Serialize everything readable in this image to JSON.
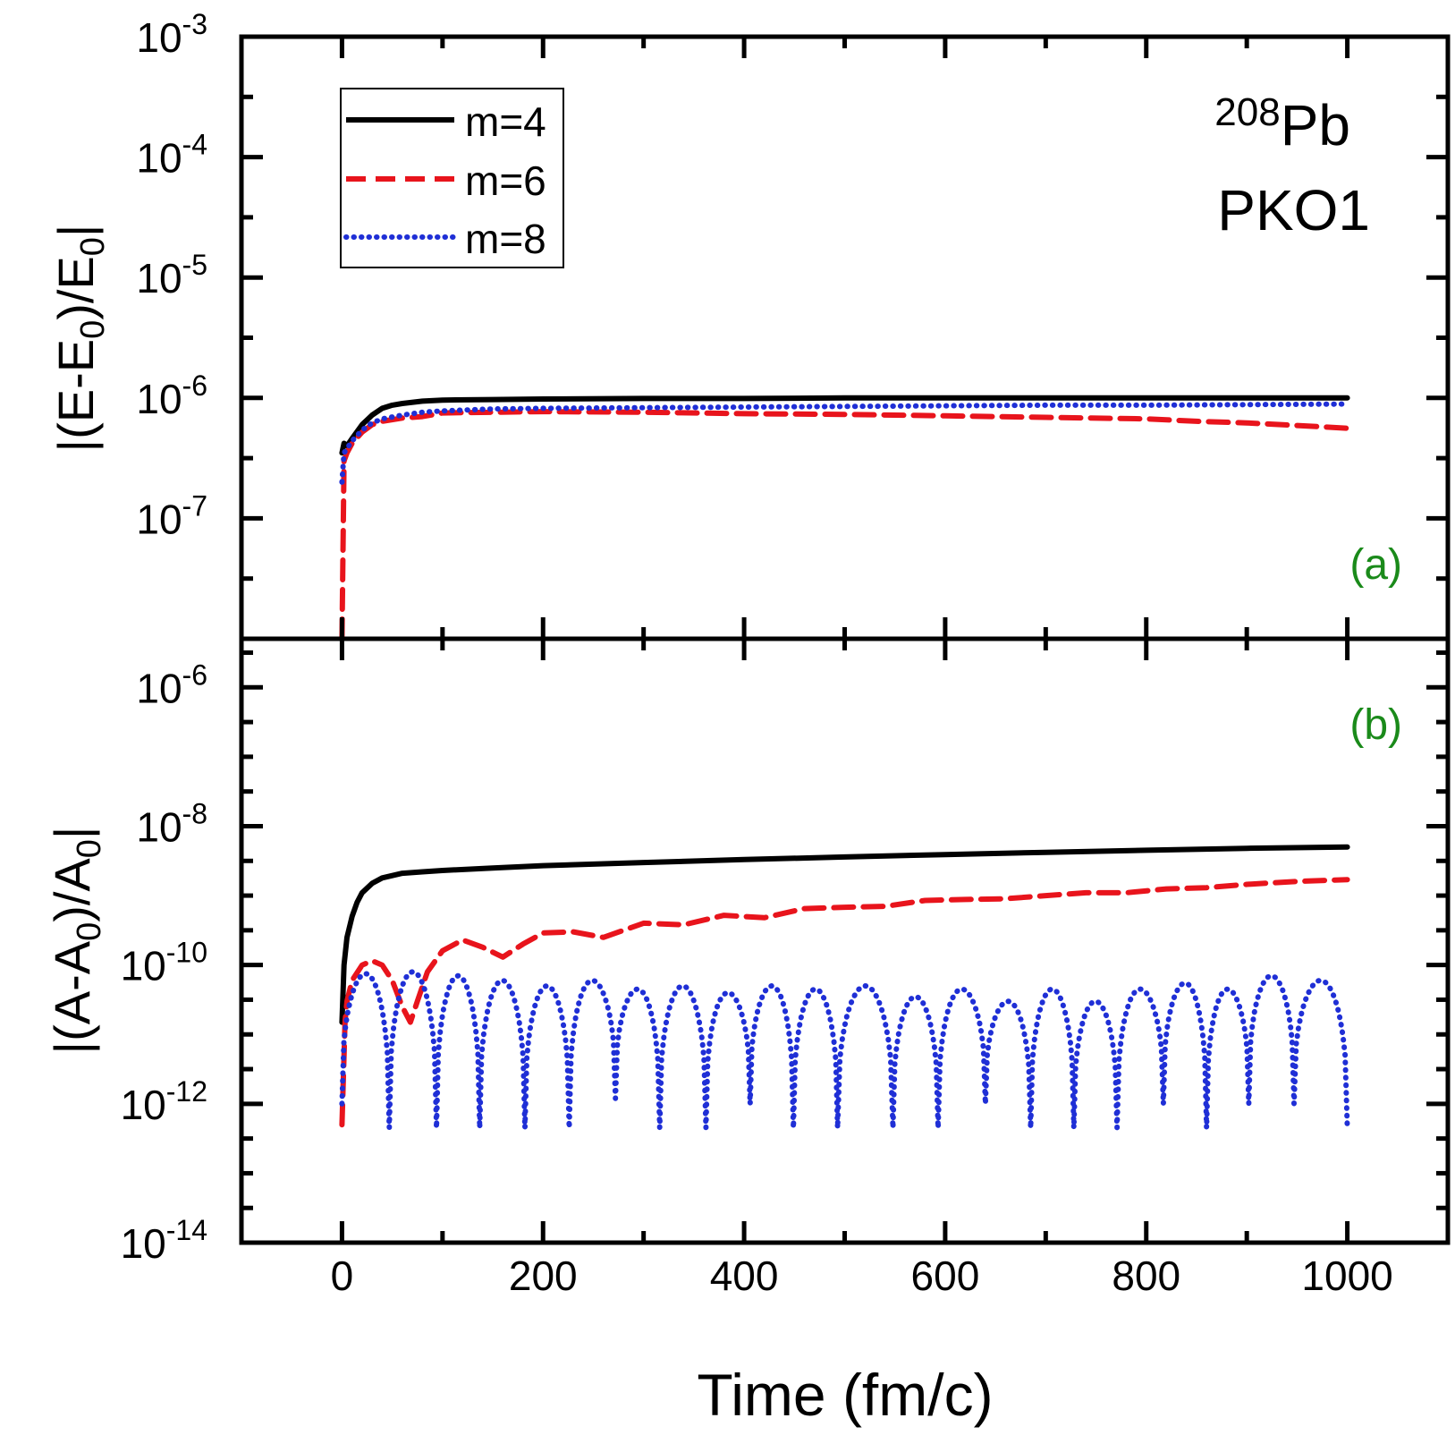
{
  "x_axis": {
    "label": "Time (fm/c)",
    "range": [
      -100,
      1100
    ],
    "major_ticks": [
      0,
      200,
      400,
      600,
      800,
      1000
    ],
    "minor_ticks": [
      -100,
      100,
      300,
      500,
      700,
      900,
      1100
    ],
    "tick_labels": [
      "0",
      "200",
      "400",
      "600",
      "800",
      "1000"
    ]
  },
  "legend": {
    "entries": [
      {
        "label": "m=4",
        "color": "#000000",
        "style": "solid"
      },
      {
        "label": "m=6",
        "color": "#e8141c",
        "style": "dashed"
      },
      {
        "label": "m=8",
        "color": "#1f2fd6",
        "style": "dotted"
      }
    ]
  },
  "annotation": {
    "isotope_mass": "208",
    "isotope_symbol": "Pb",
    "interaction": "PKO1"
  },
  "panel_label_color": "#1a8a1a",
  "chart_data": [
    {
      "type": "line",
      "panel": "(a)",
      "ylabel_parts": [
        "|(E-E",
        "0",
        ")/E",
        "0",
        "|"
      ],
      "yscale": "log",
      "ylim_exp": [
        -8,
        -3
      ],
      "y_tick_labels": [
        {
          "base": "10",
          "exp": "-3",
          "e": -3
        },
        {
          "base": "10",
          "exp": "-4",
          "e": -4
        },
        {
          "base": "10",
          "exp": "-5",
          "e": -5
        },
        {
          "base": "10",
          "exp": "-6",
          "e": -6
        },
        {
          "base": "10",
          "exp": "-7",
          "e": -7
        }
      ],
      "series": [
        {
          "name": "m=4",
          "color": "#000000",
          "style": "solid",
          "x": [
            0,
            2,
            5,
            10,
            20,
            30,
            40,
            50,
            60,
            80,
            100,
            150,
            200,
            300,
            400,
            500,
            600,
            700,
            800,
            900,
            1000
          ],
          "y": [
            3.5e-07,
            4.2e-07,
            4e-07,
            4.6e-07,
            6e-07,
            7.2e-07,
            8.2e-07,
            8.7e-07,
            9e-07,
            9.4e-07,
            9.6e-07,
            9.7e-07,
            9.8e-07,
            9.9e-07,
            9.9e-07,
            1e-06,
            1e-06,
            1e-06,
            1e-06,
            1e-06,
            1e-06
          ]
        },
        {
          "name": "m=6",
          "color": "#e8141c",
          "style": "dashed",
          "x": [
            0,
            2,
            5,
            10,
            20,
            30,
            40,
            60,
            80,
            100,
            150,
            200,
            300,
            400,
            500,
            600,
            700,
            800,
            850,
            900,
            950,
            1000
          ],
          "y": [
            1e-08,
            3e-07,
            3.5e-07,
            4.2e-07,
            5.2e-07,
            6e-07,
            6.4e-07,
            6.8e-07,
            7e-07,
            7.5e-07,
            7.6e-07,
            7.7e-07,
            7.6e-07,
            7.4e-07,
            7.3e-07,
            7.1e-07,
            6.9e-07,
            6.7e-07,
            6.4e-07,
            6.2e-07,
            5.9e-07,
            5.6e-07
          ]
        },
        {
          "name": "m=8",
          "color": "#1f2fd6",
          "style": "dotted",
          "x": [
            0,
            2,
            5,
            10,
            20,
            30,
            40,
            60,
            80,
            100,
            150,
            200,
            300,
            400,
            500,
            600,
            700,
            800,
            900,
            1000
          ],
          "y": [
            2e-07,
            3.5e-07,
            3.8e-07,
            4.4e-07,
            5.4e-07,
            6.2e-07,
            6.7e-07,
            7.2e-07,
            7.6e-07,
            7.8e-07,
            8.1e-07,
            8.2e-07,
            8.3e-07,
            8.4e-07,
            8.5e-07,
            8.6e-07,
            8.7e-07,
            8.7e-07,
            8.8e-07,
            8.9e-07
          ]
        }
      ]
    },
    {
      "type": "line",
      "panel": "(b)",
      "ylabel_parts": [
        "|(A-A",
        "0",
        ")/A",
        "0",
        "|"
      ],
      "yscale": "log",
      "ylim_exp": [
        -14,
        -5.3
      ],
      "y_tick_labels": [
        {
          "base": "10",
          "exp": "-6",
          "e": -6
        },
        {
          "base": "10",
          "exp": "-8",
          "e": -8
        },
        {
          "base": "10",
          "exp": "-10",
          "e": -10
        },
        {
          "base": "10",
          "exp": "-12",
          "e": -12
        },
        {
          "base": "10",
          "exp": "-14",
          "e": -14
        }
      ],
      "series": [
        {
          "name": "m=4",
          "color": "#000000",
          "style": "solid",
          "x": [
            0,
            2,
            5,
            10,
            15,
            20,
            30,
            40,
            60,
            80,
            100,
            150,
            200,
            300,
            400,
            500,
            600,
            700,
            800,
            900,
            1000
          ],
          "y": [
            1.5e-11,
            1e-10,
            2.5e-10,
            5e-10,
            8e-10,
            1.1e-09,
            1.5e-09,
            1.8e-09,
            2.1e-09,
            2.2e-09,
            2.3e-09,
            2.5e-09,
            2.7e-09,
            3e-09,
            3.3e-09,
            3.6e-09,
            3.9e-09,
            4.2e-09,
            4.5e-09,
            4.8e-09,
            5e-09
          ]
        },
        {
          "name": "m=6",
          "color": "#e8141c",
          "style": "dashed",
          "x": [
            0,
            3,
            5,
            10,
            20,
            30,
            40,
            50,
            60,
            68,
            75,
            85,
            100,
            120,
            140,
            160,
            180,
            200,
            230,
            260,
            300,
            340,
            380,
            420,
            460,
            500,
            540,
            580,
            620,
            660,
            700,
            740,
            780,
            820,
            860,
            900,
            950,
            1000
          ],
          "y": [
            5e-13,
            1.5e-11,
            3e-11,
            6e-11,
            1e-10,
            1.15e-10,
            1e-10,
            6e-11,
            2.5e-11,
            1.5e-11,
            3e-11,
            8e-11,
            1.6e-10,
            2.3e-10,
            1.8e-10,
            1.3e-10,
            2e-10,
            2.9e-10,
            3e-10,
            2.5e-10,
            4e-10,
            3.8e-10,
            5.2e-10,
            4.8e-10,
            6.5e-10,
            6.8e-10,
            7e-10,
            8.5e-10,
            8.8e-10,
            9e-10,
            1e-09,
            1.1e-09,
            1.1e-09,
            1.25e-09,
            1.3e-09,
            1.45e-09,
            1.6e-09,
            1.7e-09
          ]
        },
        {
          "name": "m=8",
          "color": "#1f2fd6",
          "style": "dotted",
          "arch_minima_x": [
            0,
            47,
            94,
            137,
            182,
            226,
            272,
            316,
            362,
            406,
            449,
            493,
            548,
            593,
            640,
            685,
            728,
            771,
            817,
            860,
            902,
            947,
            1000
          ],
          "arch_peaks_y": [
            7.5e-11,
            8e-11,
            7e-11,
            6e-11,
            5e-11,
            6e-11,
            4.5e-11,
            5e-11,
            4e-11,
            5e-11,
            4.5e-11,
            5e-11,
            3.5e-11,
            4.5e-11,
            3e-11,
            4.5e-11,
            3e-11,
            4.5e-11,
            5.5e-11,
            4.5e-11,
            7e-11,
            6e-11
          ],
          "arch_minima_y": [
            1e-12,
            4.5e-13,
            4.5e-13,
            4.5e-13,
            4.5e-13,
            4.5e-13,
            1.2e-12,
            4.5e-13,
            4.5e-13,
            1e-12,
            4.5e-13,
            4.5e-13,
            4.5e-13,
            4.5e-13,
            1e-12,
            4.5e-13,
            4.5e-13,
            4.5e-13,
            1e-12,
            4.5e-13,
            1e-12,
            1e-12,
            4.5e-13
          ]
        }
      ]
    }
  ]
}
